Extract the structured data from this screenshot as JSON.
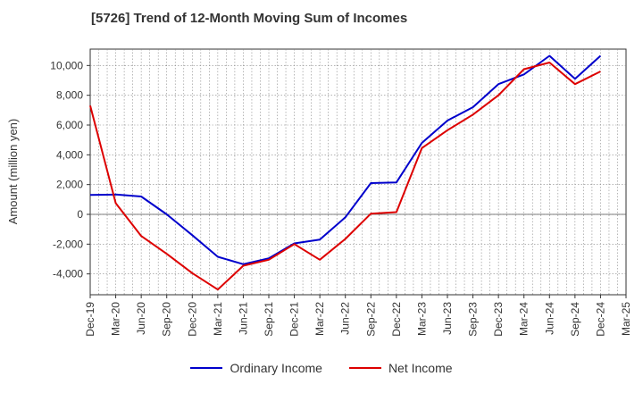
{
  "chart_data": {
    "type": "line",
    "title": "[5726]  Trend of 12-Month Moving Sum of Incomes",
    "ylabel": "Amount (million yen)",
    "xlabel": "",
    "categories": [
      "Dec-19",
      "Mar-20",
      "Jun-20",
      "Sep-20",
      "Dec-20",
      "Mar-21",
      "Jun-21",
      "Sep-21",
      "Dec-21",
      "Mar-22",
      "Jun-22",
      "Sep-22",
      "Dec-22",
      "Mar-23",
      "Jun-23",
      "Sep-23",
      "Dec-23",
      "Mar-24",
      "Jun-24",
      "Sep-24",
      "Dec-24",
      "Mar-25"
    ],
    "yticks": [
      -4000,
      -2000,
      0,
      2000,
      4000,
      6000,
      8000,
      10000
    ],
    "yticklabels": [
      "-4,000",
      "-2,000",
      "0",
      "2,000",
      "4,000",
      "6,000",
      "8,000",
      "10,000"
    ],
    "ylim": [
      -5400,
      11100
    ],
    "grid": true,
    "legend_position": "bottom",
    "series": [
      {
        "name": "Ordinary Income",
        "color": "#0000cc",
        "values": [
          1300,
          1330,
          1200,
          0,
          -1400,
          -2850,
          -3350,
          -2950,
          -1950,
          -1700,
          -200,
          2100,
          2150,
          4800,
          6300,
          7200,
          8750,
          9400,
          10650,
          9100,
          10650,
          null
        ]
      },
      {
        "name": "Net Income",
        "color": "#dd0000",
        "values": [
          7300,
          750,
          -1450,
          -2650,
          -3950,
          -5050,
          -3450,
          -3050,
          -2000,
          -3050,
          -1650,
          50,
          150,
          4450,
          5650,
          6700,
          8000,
          9750,
          10200,
          8750,
          9600,
          null
        ]
      }
    ]
  }
}
